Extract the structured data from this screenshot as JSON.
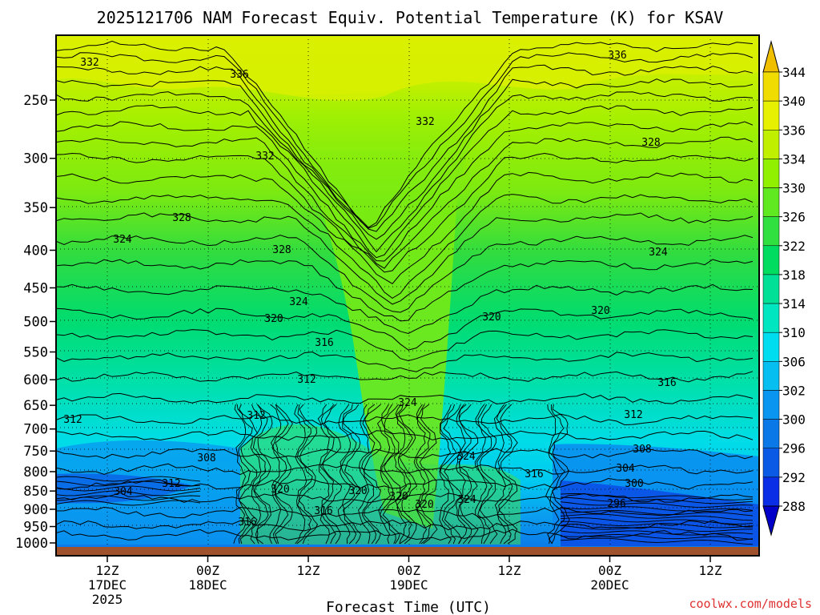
{
  "chart_data": {
    "type": "heatmap",
    "title": "2025121706 NAM Forecast Equiv. Potential Temperature (K) for KSAV",
    "xlabel": "Forecast Time (UTC)",
    "ylabel": "",
    "y_axis": {
      "scale": "log-pressure (hPa)",
      "ticks": [
        250,
        300,
        350,
        400,
        450,
        500,
        550,
        600,
        650,
        700,
        750,
        800,
        850,
        900,
        950,
        1000
      ],
      "tick_labels": [
        "250",
        "300",
        "350",
        "400",
        "450",
        "500",
        "550",
        "600",
        "650",
        "700",
        "750",
        "800",
        "850",
        "900",
        "950",
        "1000"
      ]
    },
    "x_axis": {
      "ticks": [
        {
          "l1": "12Z",
          "l2": "17DEC",
          "l3": "2025"
        },
        {
          "l1": "00Z",
          "l2": "18DEC",
          "l3": ""
        },
        {
          "l1": "12Z",
          "l2": "",
          "l3": ""
        },
        {
          "l1": "00Z",
          "l2": "19DEC",
          "l3": ""
        },
        {
          "l1": "12Z",
          "l2": "",
          "l3": ""
        },
        {
          "l1": "00Z",
          "l2": "20DEC",
          "l3": ""
        },
        {
          "l1": "12Z",
          "l2": "",
          "l3": ""
        }
      ]
    },
    "colorbar": {
      "units": "K",
      "levels": [
        288,
        292,
        296,
        300,
        302,
        306,
        310,
        314,
        318,
        322,
        326,
        330,
        334,
        336,
        340,
        344
      ],
      "colors": [
        "#0000c8",
        "#0a2ee6",
        "#0a5ae6",
        "#0a78e6",
        "#0a96f0",
        "#06bef0",
        "#00dcf0",
        "#00e6c0",
        "#00e096",
        "#00dc60",
        "#30e040",
        "#60e820",
        "#90f000",
        "#c0f000",
        "#e6f000",
        "#f0dc00",
        "#f0c000"
      ]
    },
    "contour_labels": [
      {
        "text": "332"
      },
      {
        "text": "336"
      },
      {
        "text": "336"
      },
      {
        "text": "332"
      },
      {
        "text": "332"
      },
      {
        "text": "328"
      },
      {
        "text": "328"
      },
      {
        "text": "324"
      },
      {
        "text": "328"
      },
      {
        "text": "324"
      },
      {
        "text": "324"
      },
      {
        "text": "320"
      },
      {
        "text": "320"
      },
      {
        "text": "320"
      },
      {
        "text": "316"
      },
      {
        "text": "316"
      },
      {
        "text": "312"
      },
      {
        "text": "312"
      },
      {
        "text": "312"
      },
      {
        "text": "312"
      },
      {
        "text": "324"
      },
      {
        "text": "308"
      },
      {
        "text": "308"
      },
      {
        "text": "304"
      },
      {
        "text": "304"
      },
      {
        "text": "312"
      },
      {
        "text": "300"
      },
      {
        "text": "296"
      },
      {
        "text": "320"
      },
      {
        "text": "320"
      },
      {
        "text": "320"
      },
      {
        "text": "320"
      },
      {
        "text": "324"
      },
      {
        "text": "324"
      },
      {
        "text": "316"
      },
      {
        "text": "316"
      },
      {
        "text": "316"
      }
    ],
    "grid": true
  },
  "credit": "coolwx.com/models"
}
